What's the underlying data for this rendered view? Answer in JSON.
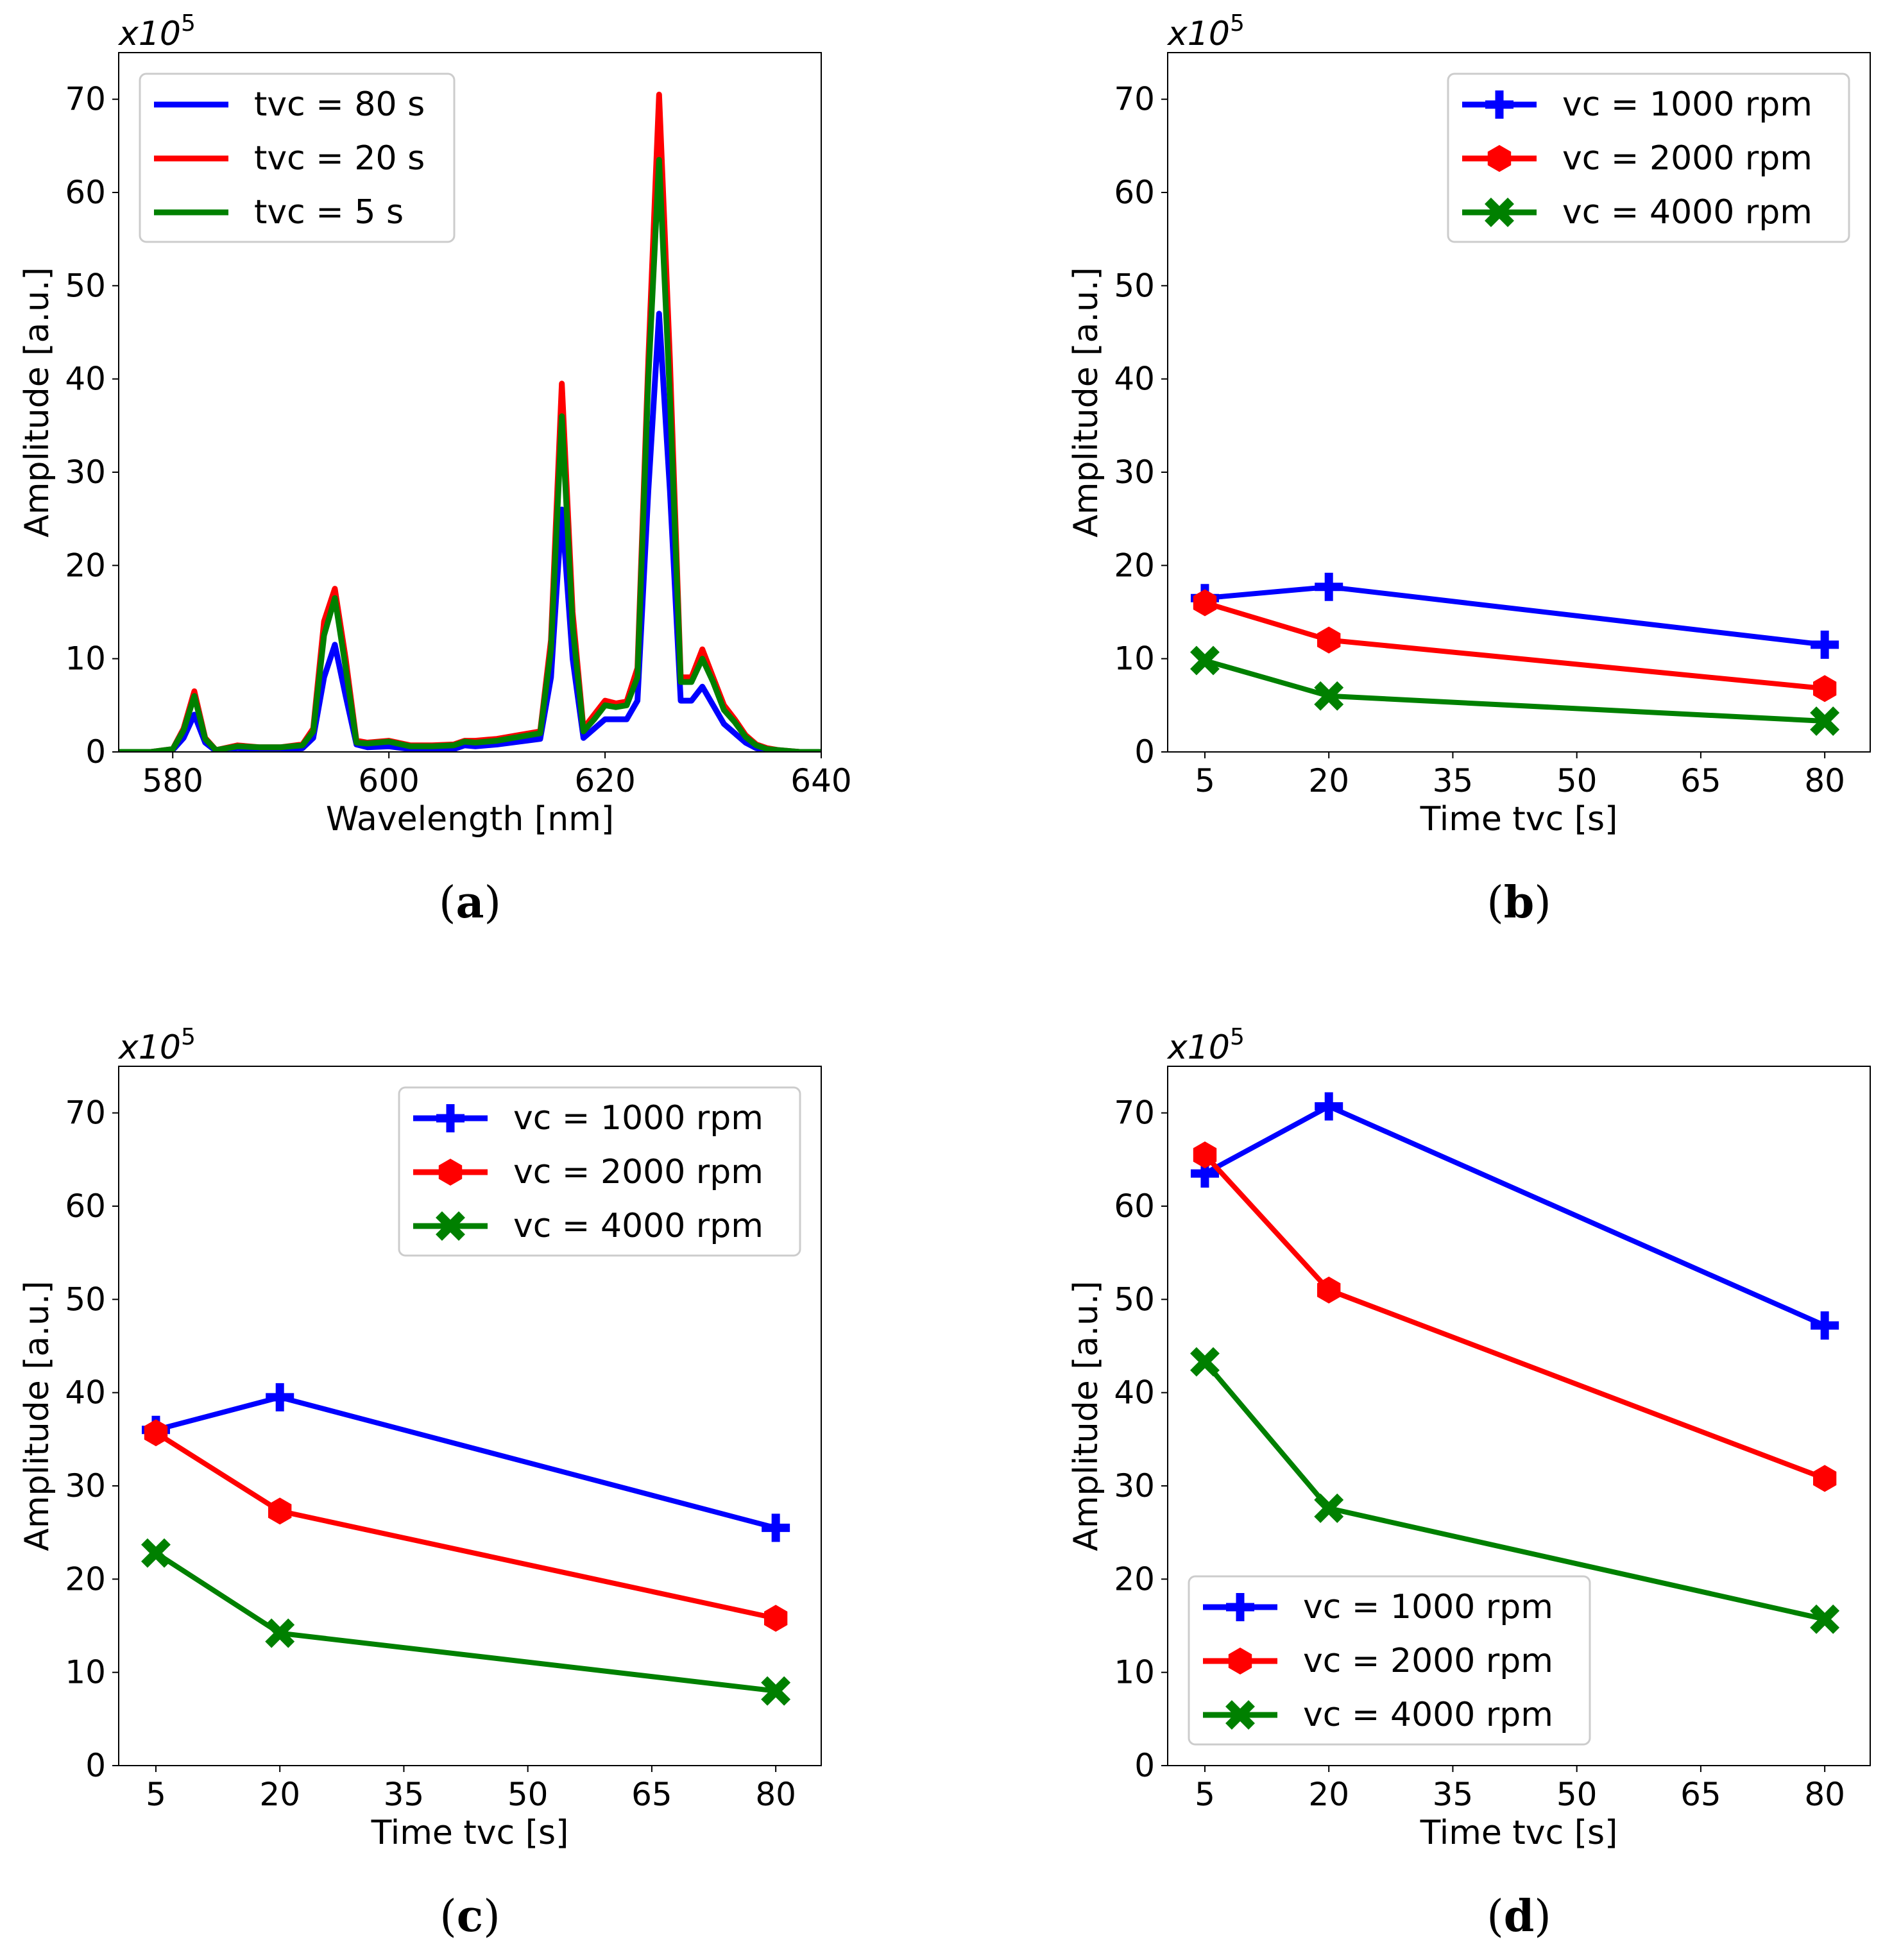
{
  "figure": {
    "panels": [
      "a",
      "b",
      "c",
      "d"
    ]
  },
  "colors": {
    "blue": "#0000ff",
    "red": "#ff0000",
    "green": "#008000",
    "axis": "#000000",
    "legend_border": "#cccccc"
  },
  "chart_data": [
    {
      "id": "a",
      "type": "line",
      "caption_letter": "a",
      "caption_open": "(",
      "caption_close": ")",
      "multiplier_base": "x10",
      "multiplier_exp": "5",
      "xlabel": "Wavelength [nm]",
      "ylabel": "Amplitude [a.u.]",
      "xlim": [
        575,
        640
      ],
      "ylim": [
        0,
        75
      ],
      "xticks": [
        580,
        600,
        620,
        640
      ],
      "yticks": [
        0,
        10,
        20,
        30,
        40,
        50,
        60,
        70
      ],
      "legend_position": "top-left",
      "series": [
        {
          "name": "tvc = 80 s",
          "color": "#0000ff",
          "marker": "none",
          "x": [
            575,
            578,
            580,
            581,
            582,
            583,
            584,
            586,
            588,
            590,
            592,
            593,
            594,
            595,
            596,
            597,
            598,
            600,
            602,
            604,
            606,
            607,
            608,
            610,
            612,
            614,
            615,
            616,
            617,
            618,
            619,
            620,
            621,
            622,
            623,
            624,
            625,
            626,
            627,
            628,
            629,
            630,
            631,
            632,
            633,
            634,
            635,
            636,
            638,
            640
          ],
          "y": [
            0,
            0,
            0.2,
            1.5,
            4.0,
            1.0,
            0.1,
            0.4,
            0.3,
            0.3,
            0.4,
            1.5,
            8.0,
            11.5,
            6.0,
            0.8,
            0.5,
            0.6,
            0.3,
            0.3,
            0.3,
            0.7,
            0.6,
            0.8,
            1.1,
            1.4,
            8.0,
            26.0,
            10.0,
            1.5,
            2.5,
            3.5,
            3.5,
            3.5,
            5.5,
            28.0,
            47.0,
            28.0,
            5.5,
            5.5,
            7.0,
            5.0,
            3.0,
            2.0,
            1.0,
            0.4,
            0.2,
            0.1,
            0,
            0
          ]
        },
        {
          "name": "tvc = 20 s",
          "color": "#ff0000",
          "marker": "none",
          "x": [
            575,
            578,
            580,
            581,
            582,
            583,
            584,
            586,
            588,
            590,
            592,
            593,
            594,
            595,
            596,
            597,
            598,
            600,
            602,
            604,
            606,
            607,
            608,
            610,
            612,
            614,
            615,
            616,
            617,
            618,
            619,
            620,
            621,
            622,
            623,
            624,
            625,
            626,
            627,
            628,
            629,
            630,
            631,
            632,
            633,
            634,
            635,
            636,
            638,
            640
          ],
          "y": [
            0,
            0,
            0.3,
            2.5,
            6.5,
            1.5,
            0.2,
            0.7,
            0.5,
            0.5,
            0.8,
            2.5,
            14.0,
            17.5,
            10.0,
            1.2,
            1.0,
            1.2,
            0.7,
            0.7,
            0.8,
            1.2,
            1.2,
            1.4,
            1.8,
            2.2,
            12.0,
            39.5,
            15.0,
            2.5,
            4.0,
            5.5,
            5.2,
            5.4,
            9.0,
            42.0,
            70.5,
            42.0,
            8.0,
            8.0,
            11.0,
            8.0,
            5.0,
            3.5,
            1.8,
            0.8,
            0.4,
            0.2,
            0,
            0
          ]
        },
        {
          "name": "tvc = 5 s",
          "color": "#008000",
          "marker": "none",
          "x": [
            575,
            578,
            580,
            581,
            582,
            583,
            584,
            586,
            588,
            590,
            592,
            593,
            594,
            595,
            596,
            597,
            598,
            600,
            602,
            604,
            606,
            607,
            608,
            610,
            612,
            614,
            615,
            616,
            617,
            618,
            619,
            620,
            621,
            622,
            623,
            624,
            625,
            626,
            627,
            628,
            629,
            630,
            631,
            632,
            633,
            634,
            635,
            636,
            638,
            640
          ],
          "y": [
            0,
            0,
            0.3,
            2.3,
            6.0,
            1.4,
            0.2,
            0.6,
            0.5,
            0.5,
            0.7,
            2.2,
            12.5,
            16.5,
            9.0,
            1.0,
            0.9,
            1.1,
            0.6,
            0.6,
            0.7,
            1.1,
            1.0,
            1.2,
            1.6,
            2.0,
            11.0,
            36.0,
            13.5,
            2.2,
            3.5,
            5.0,
            4.8,
            5.0,
            8.0,
            40.0,
            63.5,
            38.0,
            7.5,
            7.5,
            10.0,
            7.5,
            4.5,
            3.2,
            1.6,
            0.7,
            0.3,
            0.2,
            0,
            0
          ]
        }
      ]
    },
    {
      "id": "b",
      "type": "line",
      "caption_letter": "b",
      "caption_open": "(",
      "caption_close": ")",
      "multiplier_base": "x10",
      "multiplier_exp": "5",
      "xlabel": "Time tvc [s]",
      "ylabel": "Amplitude [a.u.]",
      "xlim": [
        0.5,
        85.5
      ],
      "ylim": [
        0,
        75
      ],
      "xticks": [
        5,
        20,
        35,
        50,
        65,
        80
      ],
      "yticks": [
        0,
        10,
        20,
        30,
        40,
        50,
        60,
        70
      ],
      "legend_position": "top-right",
      "series": [
        {
          "name": "vc = 1000 rpm",
          "color": "#0000ff",
          "marker": "plus",
          "x": [
            5,
            20,
            80
          ],
          "y": [
            16.5,
            17.7,
            11.5
          ]
        },
        {
          "name": "vc = 2000 rpm",
          "color": "#ff0000",
          "marker": "hexagon",
          "x": [
            5,
            20,
            80
          ],
          "y": [
            16.0,
            12.0,
            6.8
          ]
        },
        {
          "name": "vc = 4000 rpm",
          "color": "#008000",
          "marker": "x",
          "x": [
            5,
            20,
            80
          ],
          "y": [
            9.8,
            6.0,
            3.3
          ]
        }
      ]
    },
    {
      "id": "c",
      "type": "line",
      "caption_letter": "c",
      "caption_open": "(",
      "caption_close": ")",
      "multiplier_base": "x10",
      "multiplier_exp": "5",
      "xlabel": "Time tvc [s]",
      "ylabel": "Amplitude [a.u.]",
      "xlim": [
        0.5,
        85.5
      ],
      "ylim": [
        0,
        75
      ],
      "xticks": [
        5,
        20,
        35,
        50,
        65,
        80
      ],
      "yticks": [
        0,
        10,
        20,
        30,
        40,
        50,
        60,
        70
      ],
      "legend_position": "top-right",
      "series": [
        {
          "name": "vc = 1000 rpm",
          "color": "#0000ff",
          "marker": "plus",
          "x": [
            5,
            20,
            80
          ],
          "y": [
            36.0,
            39.5,
            25.5
          ]
        },
        {
          "name": "vc = 2000 rpm",
          "color": "#ff0000",
          "marker": "hexagon",
          "x": [
            5,
            20,
            80
          ],
          "y": [
            35.7,
            27.3,
            15.8
          ]
        },
        {
          "name": "vc = 4000 rpm",
          "color": "#008000",
          "marker": "x",
          "x": [
            5,
            20,
            80
          ],
          "y": [
            22.8,
            14.2,
            8.0
          ]
        }
      ]
    },
    {
      "id": "d",
      "type": "line",
      "caption_letter": "d",
      "caption_open": "(",
      "caption_close": ")",
      "multiplier_base": "x10",
      "multiplier_exp": "5",
      "xlabel": "Time tvc [s]",
      "ylabel": "Amplitude [a.u.]",
      "xlim": [
        0.5,
        85.5
      ],
      "ylim": [
        0,
        75
      ],
      "xticks": [
        5,
        20,
        35,
        50,
        65,
        80
      ],
      "yticks": [
        0,
        10,
        20,
        30,
        40,
        50,
        60,
        70
      ],
      "legend_position": "bottom-left",
      "series": [
        {
          "name": "vc = 1000 rpm",
          "color": "#0000ff",
          "marker": "plus",
          "x": [
            5,
            20,
            80
          ],
          "y": [
            63.5,
            70.7,
            47.2
          ]
        },
        {
          "name": "vc = 2000 rpm",
          "color": "#ff0000",
          "marker": "hexagon",
          "x": [
            5,
            20,
            80
          ],
          "y": [
            65.5,
            51.0,
            30.8
          ]
        },
        {
          "name": "vc = 4000 rpm",
          "color": "#008000",
          "marker": "x",
          "x": [
            5,
            20,
            80
          ],
          "y": [
            43.3,
            27.6,
            15.7
          ]
        }
      ]
    }
  ]
}
